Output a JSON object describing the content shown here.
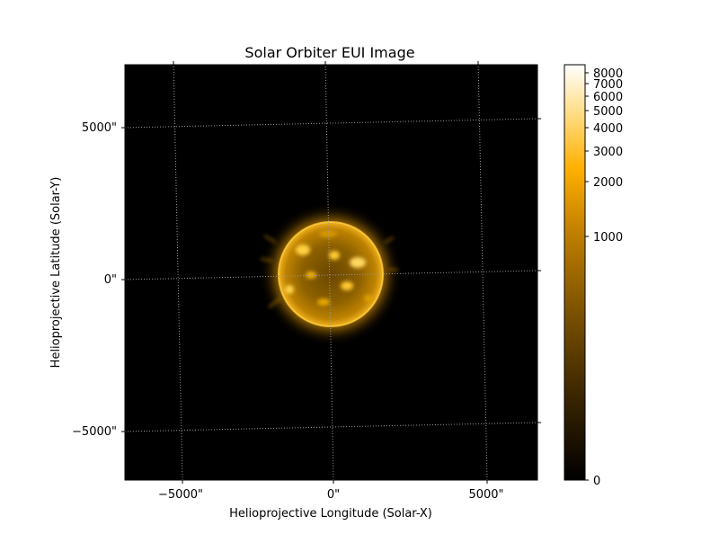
{
  "title": "Solar Orbiter EUI Image",
  "xlabel": "Helioprojective Longitude (Solar-X)",
  "ylabel": "Helioprojective Latitude (Solar-Y)",
  "x_ticks": [
    "−5000\"",
    "0\"",
    "5000\""
  ],
  "y_ticks": [
    "5000\"",
    "0\"",
    "−5000\""
  ],
  "colorbar": {
    "ticks": [
      "8000",
      "7000",
      "6000",
      "5000",
      "4000",
      "3000",
      "2000",
      "1000",
      "0"
    ],
    "scale": "logarithmic-like (asinh)",
    "colormap": [
      "#000000",
      "#3a2500",
      "#7a5100",
      "#c28000",
      "#ffb000",
      "#ffdc82",
      "#ffffff"
    ]
  },
  "colors": {
    "plot_background": "#000000",
    "solar_disk": "#9b6a00",
    "corona": "#d49300",
    "grid": "#9a9a9a"
  }
}
